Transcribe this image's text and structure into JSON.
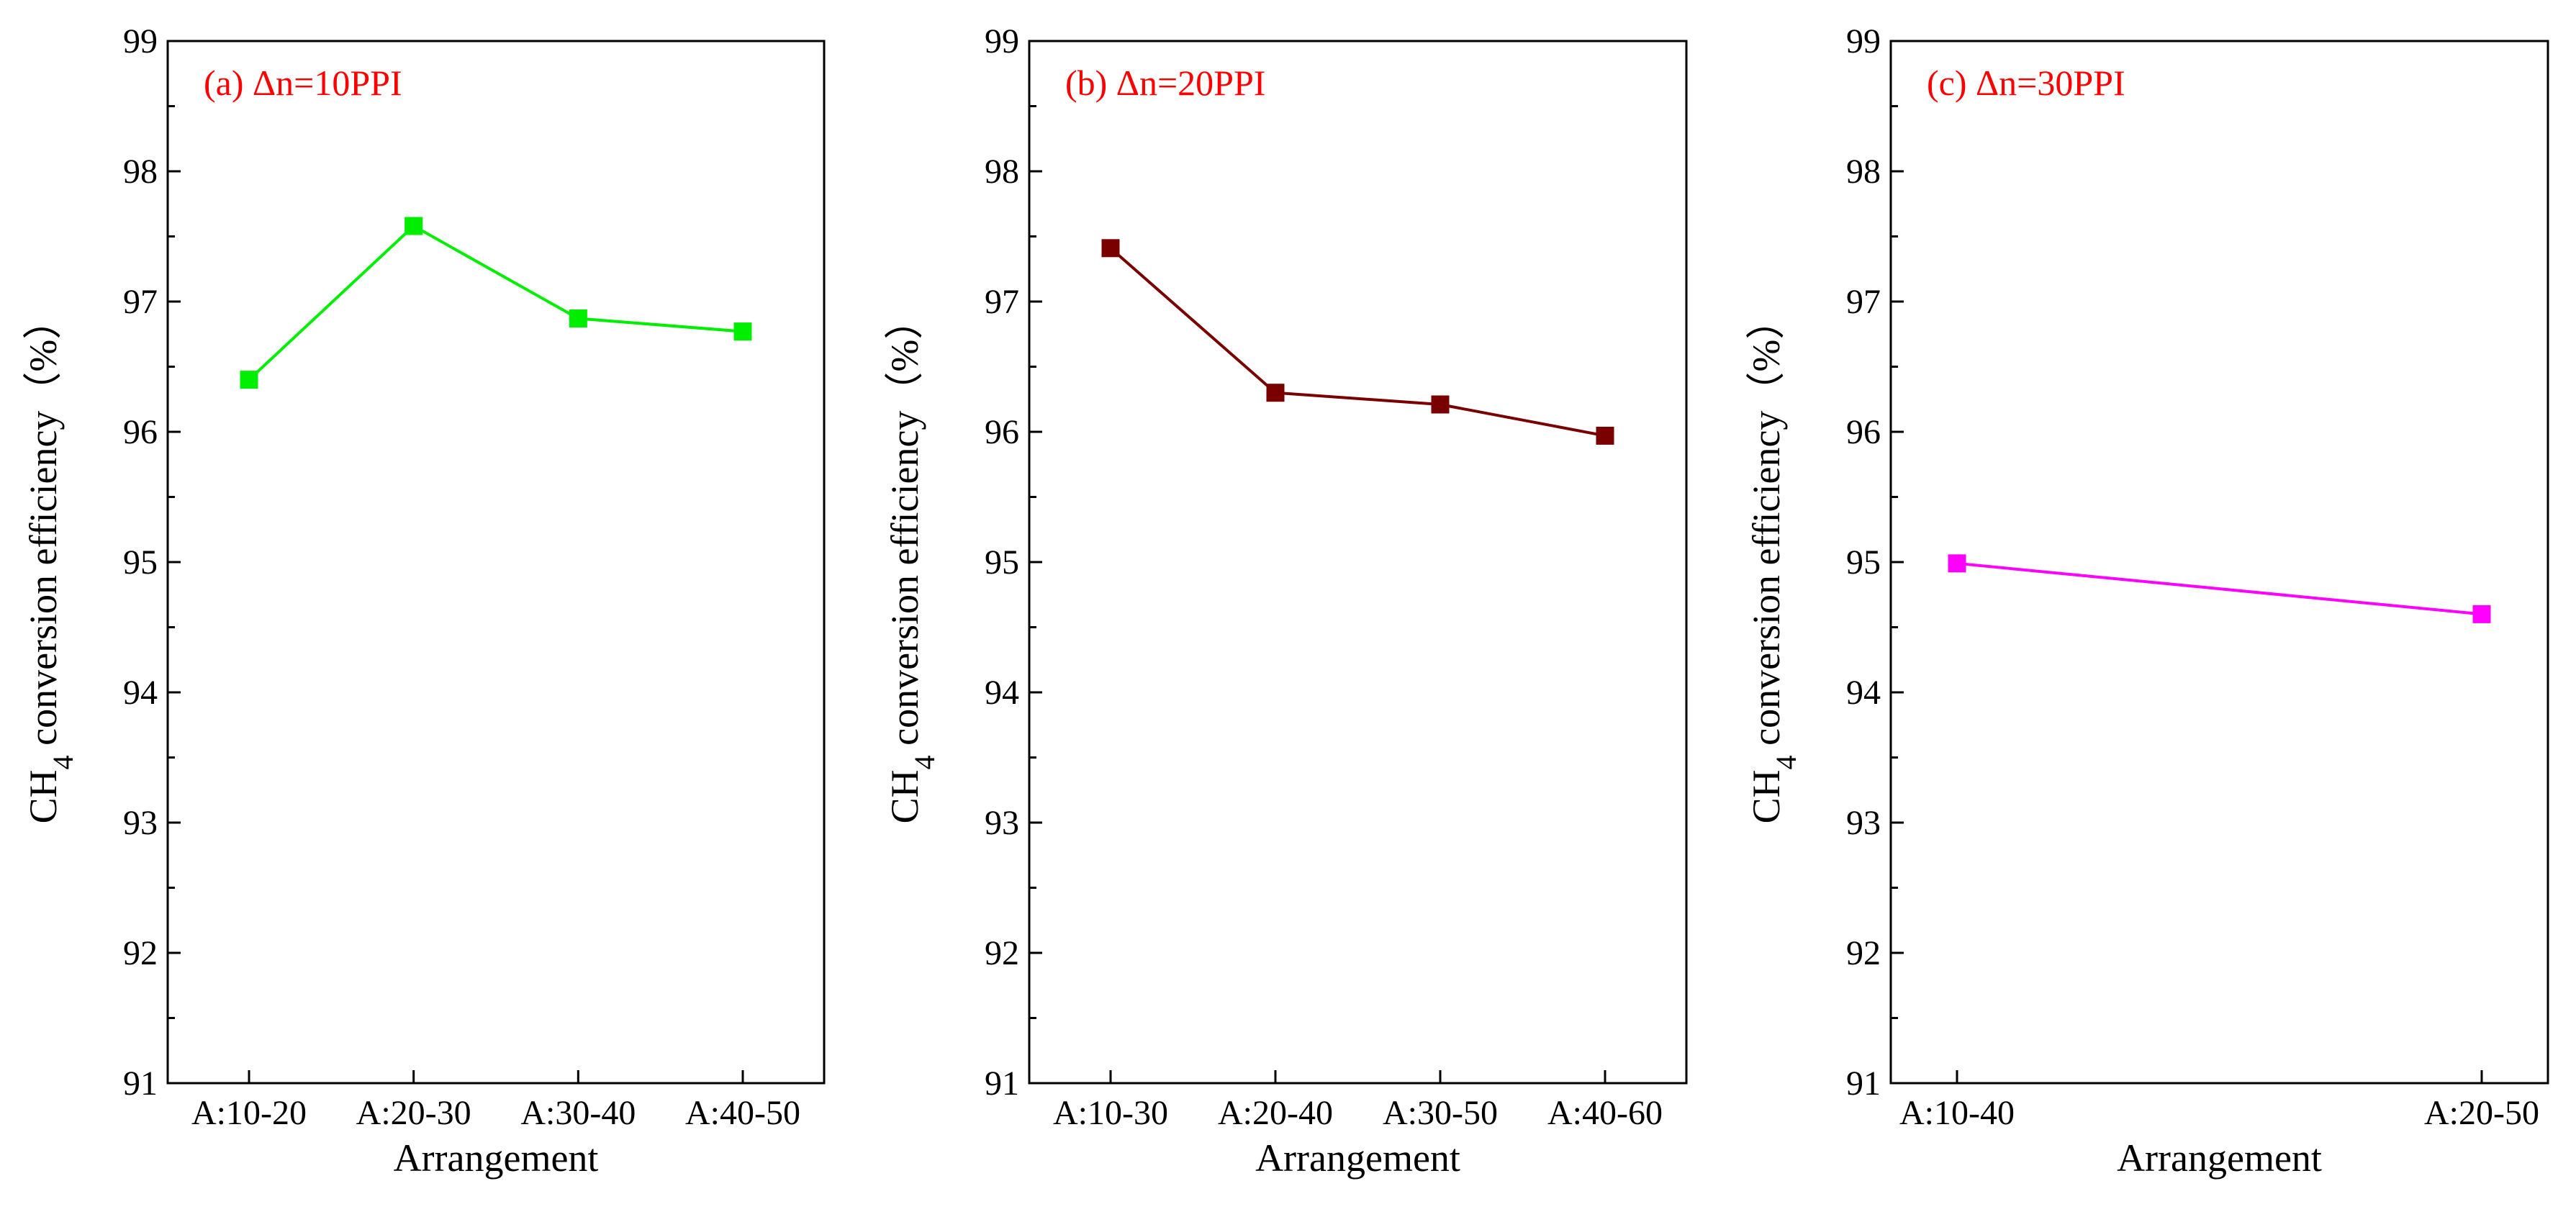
{
  "chart_data": [
    {
      "type": "line",
      "title": "(a) Δn=10PPI",
      "title_color": "#ff0000",
      "xlabel": "Arrangement",
      "ylabel_main": "CH",
      "ylabel_sub": "4",
      "ylabel_rest": " conversion efficiency（%）",
      "ylim": [
        91,
        99
      ],
      "yticks": [
        "91",
        "92",
        "93",
        "94",
        "95",
        "96",
        "97",
        "98",
        "99"
      ],
      "categories": [
        "A:10-20",
        "A:20-30",
        "A:30-40",
        "A:40-50"
      ],
      "series": [
        {
          "name": "Δn=10PPI",
          "color": "#00ee00",
          "values": [
            96.4,
            97.58,
            96.87,
            96.77
          ]
        }
      ]
    },
    {
      "type": "line",
      "title": "(b) Δn=20PPI",
      "title_color": "#ff0000",
      "xlabel": "Arrangement",
      "ylabel_main": "CH",
      "ylabel_sub": "4",
      "ylabel_rest": " conversion efficiency（%）",
      "ylim": [
        91,
        99
      ],
      "yticks": [
        "91",
        "92",
        "93",
        "94",
        "95",
        "96",
        "97",
        "98",
        "99"
      ],
      "categories": [
        "A:10-30",
        "A:20-40",
        "A:30-50",
        "A:40-60"
      ],
      "series": [
        {
          "name": "Δn=20PPI",
          "color": "#7a0000",
          "values": [
            97.41,
            96.3,
            96.21,
            95.97
          ]
        }
      ]
    },
    {
      "type": "line",
      "title": "(c) Δn=30PPI",
      "title_color": "#ff0000",
      "xlabel": "Arrangement",
      "ylabel_main": "CH",
      "ylabel_sub": "4",
      "ylabel_rest": " conversion efficiency（%）",
      "ylim": [
        91,
        99
      ],
      "yticks": [
        "91",
        "92",
        "93",
        "94",
        "95",
        "96",
        "97",
        "98",
        "99"
      ],
      "categories": [
        "A:10-40",
        "A:20-50"
      ],
      "series": [
        {
          "name": "Δn=30PPI",
          "color": "#ff00ff",
          "values": [
            94.99,
            94.6
          ]
        }
      ]
    }
  ]
}
